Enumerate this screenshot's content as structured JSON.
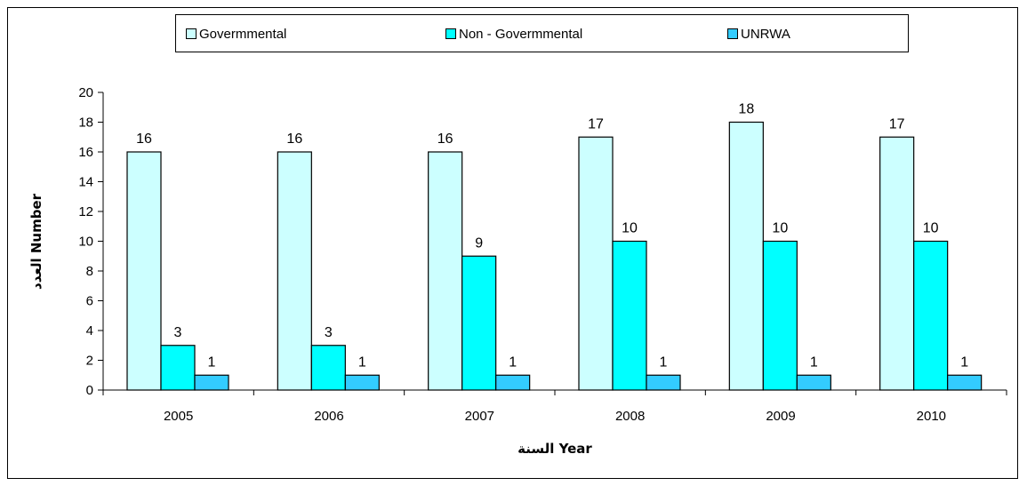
{
  "chart_data": {
    "type": "bar",
    "categories": [
      "2005",
      "2006",
      "2007",
      "2008",
      "2009",
      "2010"
    ],
    "series": [
      {
        "name": "Govermmental",
        "values": [
          16,
          16,
          16,
          17,
          18,
          17
        ],
        "color": "#ccffff"
      },
      {
        "name": "Non - Govermmental",
        "values": [
          3,
          3,
          9,
          10,
          10,
          10
        ],
        "color": "#00ffff"
      },
      {
        "name": "UNRWA",
        "values": [
          1,
          1,
          1,
          1,
          1,
          1
        ],
        "color": "#33ccff"
      }
    ],
    "xlabel": "السنة Year",
    "ylabel": "العدد Number",
    "ylim": [
      0,
      20
    ],
    "yticks": [
      0,
      2,
      4,
      6,
      8,
      10,
      12,
      14,
      16,
      18,
      20
    ],
    "legend_position": "top",
    "grid": false
  }
}
